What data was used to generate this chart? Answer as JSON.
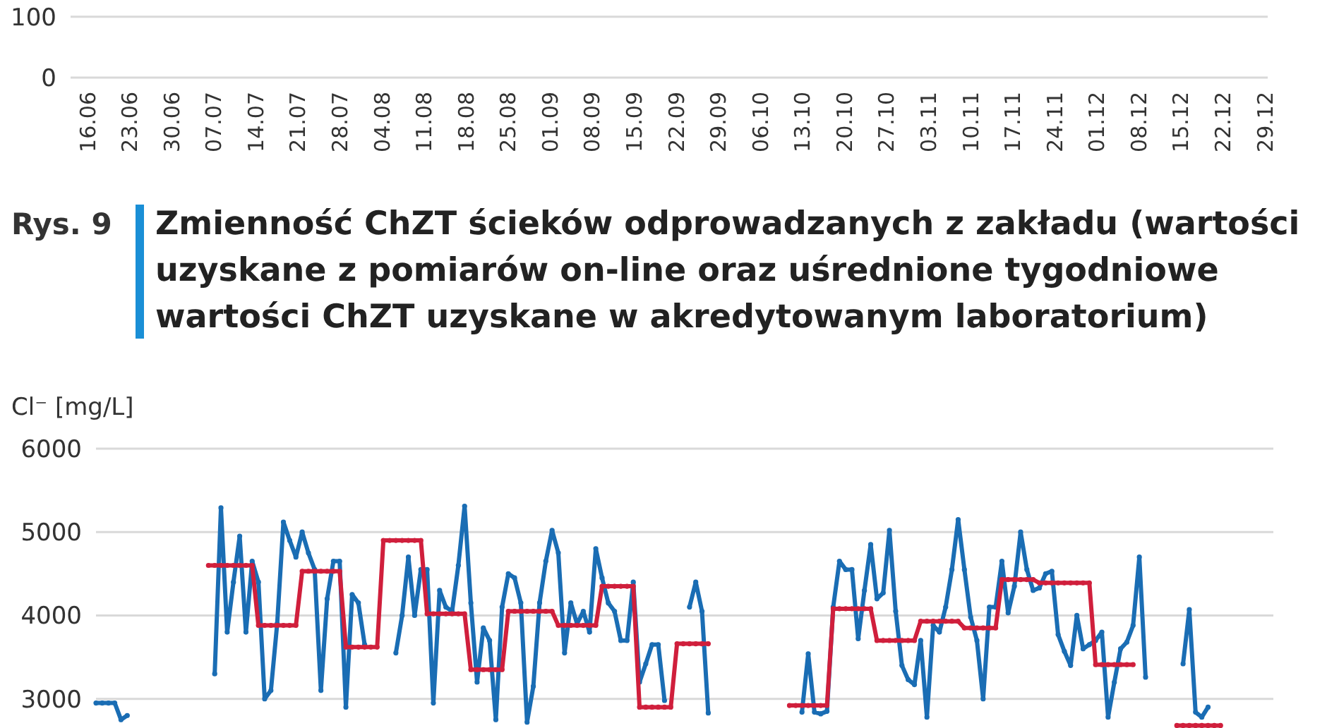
{
  "chart_data": [
    {
      "type": "line",
      "categories": [
        "16.06",
        "23.06",
        "30.06",
        "07.07",
        "14.07",
        "21.07",
        "28.07",
        "04.08",
        "11.08",
        "18.08",
        "25.08",
        "01.09",
        "08.09",
        "15.09",
        "22.09",
        "29.09",
        "06.10",
        "13.10",
        "20.10",
        "27.10",
        "03.11",
        "10.11",
        "17.11",
        "24.11",
        "01.12",
        "08.12",
        "15.12",
        "22.12",
        "29.12"
      ],
      "series": [
        {
          "color": "#1a6db4",
          "values": [
            null,
            null,
            null,
            null,
            null,
            null,
            null,
            null,
            null,
            null,
            null,
            null,
            null,
            null,
            null,
            null,
            null,
            null,
            null,
            null,
            null,
            null,
            null,
            null,
            null,
            null,
            null,
            null,
            null
          ]
        }
      ],
      "ylim": [
        0,
        130
      ],
      "yticks": [
        0,
        100
      ],
      "grid": "y",
      "annotations": [
        "Rys. 9",
        "Zmienność ChZT ścieków odprowadzanych z zakładu (wartości uzyskane z pomiarów on-line oraz uśrednione tygodniowe wartości ChZT uzyskane w akredytowanym laboratorium)"
      ]
    },
    {
      "type": "line",
      "ylabel": "Cl⁻ [mg/L]",
      "ylim": [
        2650,
        6000
      ],
      "yticks": [
        3000,
        4000,
        5000,
        6000
      ],
      "grid": "y",
      "marker": "circle",
      "line_style": "solid",
      "categories": [
        null,
        null,
        null,
        null,
        null,
        null,
        null,
        null,
        null,
        null,
        null,
        null,
        null,
        null,
        null,
        null,
        null,
        null,
        null,
        null,
        null,
        null,
        null,
        null,
        null,
        null,
        null,
        null,
        null,
        null,
        null,
        null,
        null,
        null,
        null,
        null,
        null,
        null,
        null,
        null,
        null,
        null,
        null,
        null,
        null,
        null,
        null,
        null,
        null,
        null,
        null,
        null,
        null,
        null,
        null,
        null,
        null,
        null,
        null,
        null,
        null,
        null,
        null,
        null,
        null,
        null,
        null,
        null,
        null,
        null,
        null,
        null,
        null,
        null,
        null,
        null,
        null,
        null,
        null,
        null,
        null,
        null,
        null,
        null,
        null,
        null,
        null,
        null,
        null,
        null,
        null,
        null,
        null,
        null,
        null,
        null,
        null,
        null,
        null,
        null,
        null,
        null,
        null,
        null,
        null,
        null,
        null,
        null,
        null,
        null,
        null,
        null,
        null,
        null,
        null,
        null,
        null,
        null,
        null,
        null,
        null,
        null,
        null,
        null,
        null,
        null,
        null,
        null,
        null,
        null,
        null,
        null,
        null,
        null,
        null,
        null,
        null,
        null,
        null,
        null,
        null,
        null,
        null,
        null,
        null,
        null,
        null,
        null,
        null,
        null,
        null,
        null,
        null,
        null,
        null,
        null,
        null,
        null,
        null,
        null,
        null,
        null,
        null,
        null,
        null,
        null,
        null,
        null,
        null,
        null,
        null,
        null,
        null,
        null,
        null,
        null,
        null,
        null,
        null,
        null,
        null,
        null,
        null,
        null,
        null,
        null,
        null,
        null,
        null
      ],
      "series": [
        {
          "color": "#1a6db4",
          "values": [
            2950,
            2950,
            2950,
            2950,
            2750,
            2800,
            null,
            null,
            null,
            null,
            null,
            null,
            null,
            null,
            null,
            null,
            null,
            null,
            null,
            3300,
            5290,
            3800,
            4400,
            4950,
            3800,
            4650,
            4400,
            3000,
            3100,
            3900,
            5120,
            4900,
            4700,
            5000,
            4750,
            4550,
            3100,
            4200,
            4650,
            4650,
            2900,
            4250,
            4150,
            3650,
            null,
            null,
            null,
            null,
            3550,
            4000,
            4700,
            4000,
            4550,
            4550,
            2950,
            4300,
            4100,
            4050,
            4600,
            5310,
            4150,
            3200,
            3850,
            3700,
            2750,
            4100,
            4500,
            4450,
            4150,
            2720,
            3150,
            4150,
            4650,
            5020,
            4750,
            3550,
            4150,
            3900,
            4050,
            3800,
            4800,
            4450,
            4150,
            4050,
            3700,
            3700,
            4400,
            3200,
            3420,
            3650,
            3650,
            2980,
            null,
            null,
            null,
            4100,
            4400,
            4050,
            2830,
            null,
            null,
            null,
            null,
            null,
            null,
            null,
            null,
            null,
            null,
            null,
            null,
            null,
            null,
            2840,
            3540,
            2840,
            2820,
            2850,
            4100,
            4650,
            4550,
            4550,
            3720,
            4300,
            4850,
            4200,
            4270,
            5020,
            4050,
            3400,
            3230,
            3170,
            3700,
            2780,
            3880,
            3800,
            4100,
            4550,
            5150,
            4550,
            3980,
            3700,
            3000,
            4100,
            4100,
            4650,
            4030,
            4350,
            5000,
            4550,
            4300,
            4330,
            4500,
            4530,
            3770,
            3570,
            3400,
            4000,
            3600,
            3650,
            3700,
            3800,
            2780,
            3200,
            3600,
            3680,
            3880,
            4700,
            3260,
            null,
            null,
            null,
            null,
            null,
            3420,
            4070,
            2840,
            2780,
            2900,
            null,
            null,
            null,
            null,
            null,
            null,
            null,
            null,
            null,
            null
          ]
        },
        {
          "color": "#d01f3c",
          "values": [
            null,
            null,
            null,
            null,
            null,
            null,
            null,
            null,
            null,
            null,
            null,
            null,
            null,
            null,
            null,
            null,
            null,
            null,
            4600,
            4600,
            4600,
            4600,
            4600,
            4600,
            4600,
            4600,
            3880,
            3880,
            3880,
            3880,
            3880,
            3880,
            3880,
            4530,
            4530,
            4530,
            4530,
            4530,
            4530,
            4530,
            3620,
            3620,
            3620,
            3620,
            3620,
            3620,
            4900,
            4900,
            4900,
            4900,
            4900,
            4900,
            4900,
            4020,
            4020,
            4020,
            4020,
            4020,
            4020,
            4020,
            3350,
            3350,
            3350,
            3350,
            3350,
            3350,
            4050,
            4050,
            4050,
            4050,
            4050,
            4050,
            4050,
            4050,
            3880,
            3880,
            3880,
            3880,
            3880,
            3880,
            3880,
            4350,
            4350,
            4350,
            4350,
            4350,
            4350,
            2900,
            2900,
            2900,
            2900,
            2900,
            2900,
            3660,
            3660,
            3660,
            3660,
            3660,
            3660,
            null,
            null,
            null,
            null,
            null,
            null,
            null,
            null,
            null,
            null,
            null,
            null,
            2920,
            2920,
            2920,
            2920,
            2920,
            2920,
            2920,
            4080,
            4080,
            4080,
            4080,
            4080,
            4080,
            4080,
            3700,
            3700,
            3700,
            3700,
            3700,
            3700,
            3700,
            3930,
            3930,
            3930,
            3930,
            3930,
            3930,
            3930,
            3850,
            3850,
            3850,
            3850,
            3850,
            3850,
            4430,
            4430,
            4430,
            4430,
            4430,
            4430,
            4390,
            4390,
            4390,
            4390,
            4390,
            4390,
            4390,
            4390,
            4390,
            3410,
            3410,
            3410,
            3410,
            3410,
            3410,
            3410,
            null,
            null,
            null,
            null,
            null,
            null,
            2680,
            2680,
            2680,
            2680,
            2680,
            2680,
            2680,
            2680,
            null,
            null,
            null,
            null,
            null,
            null,
            null,
            null
          ]
        }
      ]
    }
  ]
}
